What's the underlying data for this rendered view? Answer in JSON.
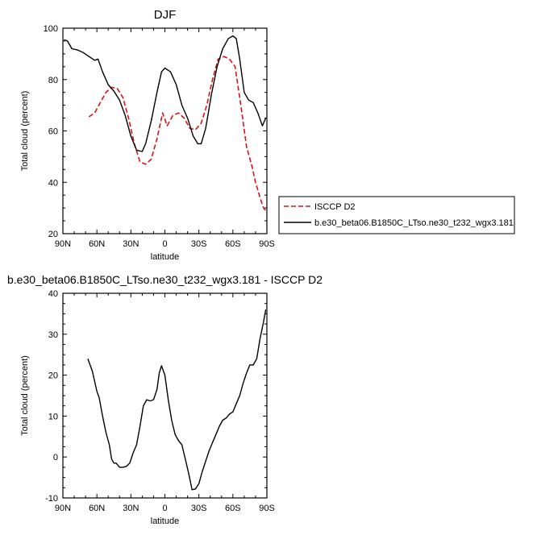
{
  "chart_data": [
    {
      "type": "line",
      "title": "DJF",
      "xlabel": "latitude",
      "ylabel": "Total cloud (percent)",
      "xlim": [
        90,
        -90
      ],
      "ylim": [
        20,
        100
      ],
      "x_ticks": [
        90,
        60,
        30,
        0,
        -30,
        -60,
        -90
      ],
      "x_tick_labels": [
        "90N",
        "60N",
        "30N",
        "0",
        "30S",
        "60S",
        "90S"
      ],
      "y_ticks": [
        20,
        40,
        60,
        80,
        100
      ],
      "y_tick_labels": [
        "20",
        "40",
        "60",
        "80",
        "100"
      ],
      "legend": "outside-right",
      "series": [
        {
          "name": "ISCCP D2",
          "color": "#dd1111",
          "dash": "dashed",
          "x": [
            67,
            62,
            57,
            52,
            47,
            42,
            37,
            32,
            27,
            22,
            17,
            12,
            7,
            2,
            -2,
            -7,
            -12,
            -17,
            -22,
            -27,
            -32,
            -37,
            -42,
            -47,
            -52,
            -57,
            -62,
            -67,
            -72,
            -77,
            -80,
            -84,
            -87,
            -89
          ],
          "y": [
            65.5,
            67,
            71,
            75,
            77,
            76.5,
            73,
            65,
            55,
            48,
            47,
            49,
            57,
            67,
            62,
            66,
            67,
            65,
            61,
            60.5,
            63,
            70,
            80,
            88,
            89,
            88,
            85,
            70,
            54,
            46,
            40,
            34,
            30,
            29
          ]
        },
        {
          "name": "b.e30_beta06.B1850C_LTso.ne30_t232_wgx3.181",
          "color": "#000000",
          "dash": "solid",
          "x": [
            89,
            86,
            82,
            77,
            72,
            67,
            62,
            59,
            55,
            50,
            45,
            40,
            35,
            30,
            25,
            20,
            17,
            12,
            7,
            3,
            0,
            -5,
            -10,
            -15,
            -20,
            -25,
            -29,
            -32,
            -36,
            -41,
            -46,
            -51,
            -56,
            -60,
            -63,
            -66,
            -70,
            -74,
            -78,
            -82,
            -86,
            -89
          ],
          "y": [
            95.5,
            95,
            92,
            91.5,
            90.5,
            89,
            87.5,
            88,
            83,
            78,
            75.5,
            72,
            66,
            58,
            52.5,
            52,
            55,
            64,
            75,
            83,
            84.5,
            83,
            78,
            70,
            65,
            58,
            55,
            55,
            61,
            74,
            85,
            92,
            96,
            97,
            96,
            88,
            75,
            72,
            71,
            67,
            62,
            65
          ]
        }
      ]
    },
    {
      "type": "line",
      "title": "b.e30_beta06.B1850C_LTso.ne30_t232_wgx3.181 - ISCCP D2",
      "xlabel": "latitude",
      "ylabel": "Total cloud (percent)",
      "xlim": [
        90,
        -90
      ],
      "ylim": [
        -10,
        40
      ],
      "x_ticks": [
        90,
        60,
        30,
        0,
        -30,
        -60,
        -90
      ],
      "x_tick_labels": [
        "90N",
        "60N",
        "30N",
        "0",
        "30S",
        "60S",
        "90S"
      ],
      "y_ticks": [
        -10,
        0,
        10,
        20,
        30,
        40
      ],
      "y_tick_labels": [
        "-10",
        "0",
        "10",
        "20",
        "30",
        "40"
      ],
      "series": [
        {
          "color": "#000000",
          "dash": "solid",
          "x": [
            68,
            64,
            60,
            58,
            55,
            52,
            49,
            47,
            45,
            43,
            40,
            37,
            34,
            31,
            28,
            25,
            22,
            19,
            16,
            13,
            10,
            7,
            5,
            3,
            0,
            -3,
            -6,
            -9,
            -12,
            -15,
            -18,
            -21,
            -24,
            -27,
            -30,
            -33,
            -36,
            -39,
            -42,
            -45,
            -48,
            -51,
            -54,
            -57,
            -60,
            -63,
            -66,
            -69,
            -72,
            -75,
            -78,
            -81,
            -84,
            -87,
            -89
          ],
          "y": [
            24,
            21,
            16,
            14.5,
            10,
            6,
            3,
            -0.5,
            -1.5,
            -1.5,
            -2.5,
            -2.5,
            -2.3,
            -1.5,
            1,
            3,
            7.5,
            12.5,
            14,
            13.7,
            14,
            16.5,
            20.5,
            22.3,
            20,
            14,
            9,
            5.5,
            4,
            3,
            -0.5,
            -4,
            -8,
            -7.8,
            -6.5,
            -3.5,
            -1,
            1.5,
            3.5,
            5.5,
            7.5,
            9,
            9.5,
            10.5,
            11,
            13,
            15,
            18,
            20.5,
            22.5,
            22.5,
            24,
            29,
            33,
            36
          ]
        }
      ]
    }
  ]
}
